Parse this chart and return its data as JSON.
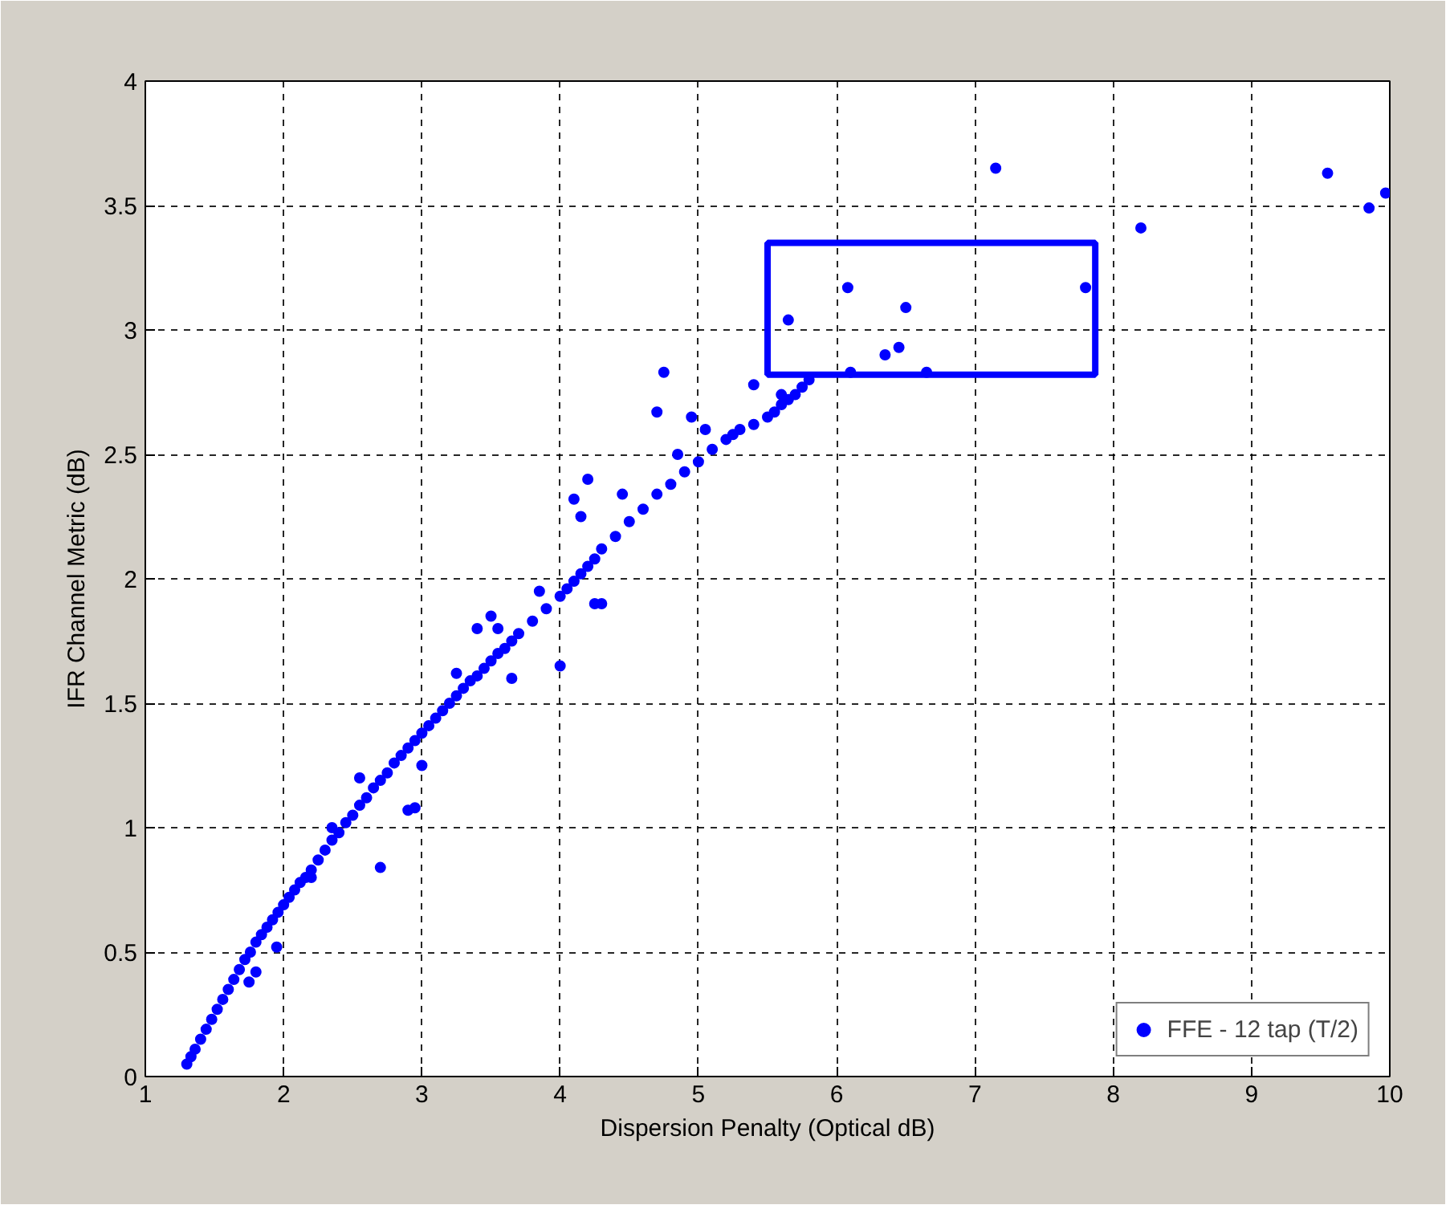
{
  "chart_data": {
    "type": "scatter",
    "xlabel": "Dispersion Penalty (Optical dB)",
    "ylabel": "IFR Channel Metric (dB)",
    "xlim": [
      1,
      10
    ],
    "ylim": [
      0,
      4
    ],
    "xticks": [
      1,
      2,
      3,
      4,
      5,
      6,
      7,
      8,
      9,
      10
    ],
    "yticks": [
      0,
      0.5,
      1,
      1.5,
      2,
      2.5,
      3,
      3.5,
      4
    ],
    "grid": true,
    "legend": "bottom right",
    "marker": "circle",
    "series": [
      {
        "name": "FFE - 12 tap (T/2)",
        "color": "#0000ff",
        "x": [
          1.3,
          1.33,
          1.36,
          1.4,
          1.44,
          1.48,
          1.52,
          1.56,
          1.6,
          1.64,
          1.68,
          1.72,
          1.76,
          1.8,
          1.84,
          1.88,
          1.92,
          1.96,
          2.0,
          2.04,
          2.08,
          2.12,
          2.16,
          2.2,
          2.25,
          2.3,
          2.35,
          2.4,
          2.45,
          2.5,
          2.55,
          2.6,
          2.65,
          2.7,
          2.75,
          2.8,
          2.85,
          2.9,
          2.95,
          3.0,
          3.05,
          3.1,
          3.15,
          3.2,
          3.25,
          3.3,
          3.35,
          3.4,
          3.45,
          3.5,
          3.55,
          3.6,
          3.65,
          3.7,
          3.8,
          3.9,
          4.0,
          4.05,
          4.1,
          4.15,
          4.2,
          4.25,
          4.3,
          4.4,
          4.5,
          4.6,
          4.7,
          4.8,
          4.9,
          5.0,
          5.1,
          5.2,
          5.3,
          5.4,
          5.5,
          5.55,
          5.6,
          5.65,
          5.7,
          5.75,
          5.8,
          1.75,
          1.8,
          1.95,
          2.2,
          2.7,
          2.9,
          2.95,
          3.0,
          3.4,
          3.5,
          3.65,
          4.0,
          4.1,
          4.2,
          4.25,
          4.3,
          4.7,
          4.75,
          4.95,
          5.05,
          5.4,
          5.65,
          6.08,
          6.5,
          6.45,
          6.35,
          6.65,
          6.1,
          7.15,
          7.8,
          8.2,
          9.55,
          9.85,
          9.97,
          2.35,
          2.55,
          3.25,
          3.55,
          4.45,
          4.85,
          5.25,
          5.6,
          3.85,
          4.15
        ],
        "values": [
          0.05,
          0.08,
          0.11,
          0.15,
          0.19,
          0.23,
          0.27,
          0.31,
          0.35,
          0.39,
          0.43,
          0.47,
          0.5,
          0.54,
          0.57,
          0.6,
          0.63,
          0.66,
          0.69,
          0.72,
          0.75,
          0.78,
          0.8,
          0.83,
          0.87,
          0.91,
          0.95,
          0.98,
          1.02,
          1.05,
          1.09,
          1.12,
          1.16,
          1.19,
          1.22,
          1.26,
          1.29,
          1.32,
          1.35,
          1.38,
          1.41,
          1.44,
          1.47,
          1.5,
          1.53,
          1.56,
          1.59,
          1.61,
          1.64,
          1.67,
          1.7,
          1.72,
          1.75,
          1.78,
          1.83,
          1.88,
          1.93,
          1.96,
          1.99,
          2.02,
          2.05,
          2.08,
          2.12,
          2.17,
          2.23,
          2.28,
          2.34,
          2.38,
          2.43,
          2.47,
          2.52,
          2.56,
          2.6,
          2.62,
          2.65,
          2.67,
          2.7,
          2.72,
          2.74,
          2.77,
          2.8,
          0.38,
          0.42,
          0.52,
          0.8,
          0.84,
          1.07,
          1.08,
          1.25,
          1.8,
          1.85,
          1.6,
          1.65,
          2.32,
          2.4,
          1.9,
          1.9,
          2.67,
          2.83,
          2.65,
          2.6,
          2.78,
          3.04,
          3.17,
          3.09,
          2.93,
          2.9,
          2.83,
          2.83,
          3.65,
          3.17,
          3.41,
          3.63,
          3.49,
          3.55,
          1.0,
          1.2,
          1.62,
          1.8,
          2.34,
          2.5,
          2.58,
          2.74,
          1.95,
          2.25
        ]
      }
    ]
  }
}
